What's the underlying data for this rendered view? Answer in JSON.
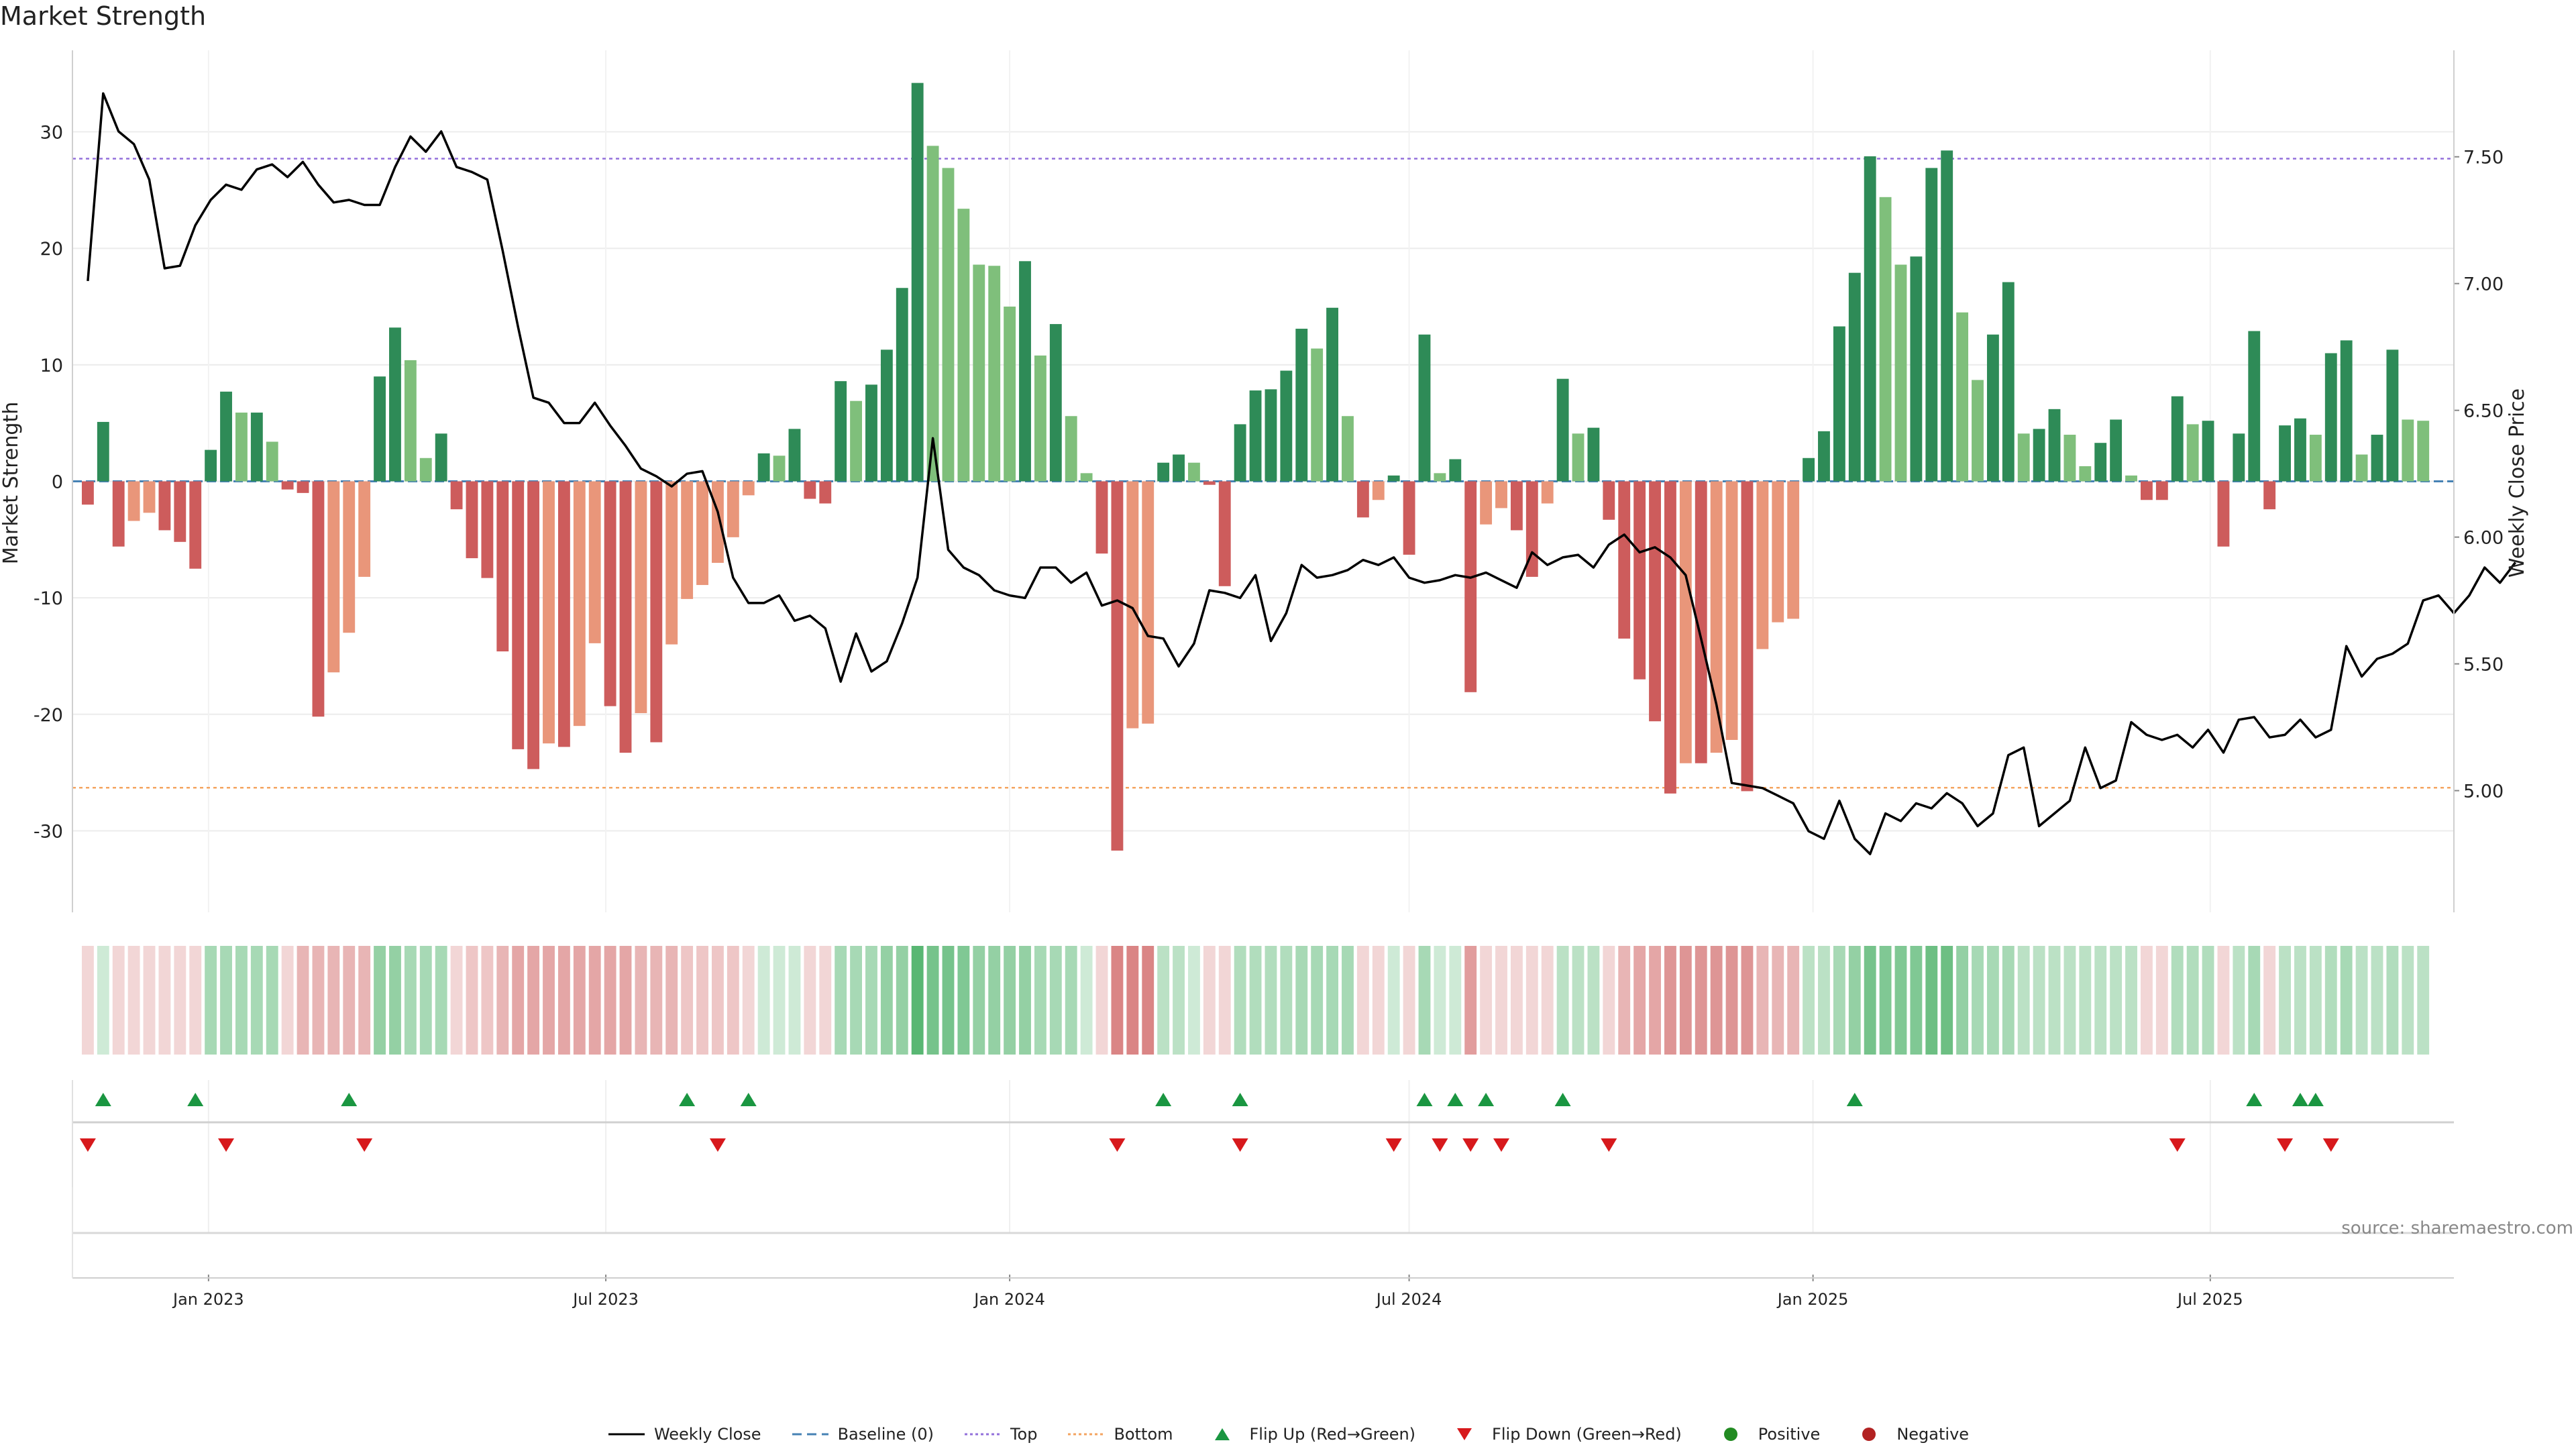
{
  "colors": {
    "pos_strong": "#2e8b57",
    "pos_weak": "#7fbf7b",
    "neg_strong": "#cd5c5c",
    "neg_weak": "#e9967a",
    "top_line": "#9370db",
    "bottom_line": "#f4a460",
    "baseline": "#4682b4",
    "price": "#000000",
    "flip_up": "#1a9641",
    "flip_down": "#d7191c",
    "positive_dot": "#228b22",
    "negative_dot": "#b22222"
  },
  "chart_data": {
    "type": "bar",
    "title": "Market Strength",
    "ylabel": "Market Strength",
    "y2label": "Weekly Close Price",
    "ylim": [
      -37,
      37
    ],
    "y2lim": [
      4.52,
      7.92
    ],
    "yticks": [
      -30,
      -20,
      -10,
      0,
      10,
      20,
      30
    ],
    "y2ticks": [
      5.0,
      5.5,
      6.0,
      6.5,
      7.0,
      7.5
    ],
    "y2tick_labels": [
      "5.00",
      "5.50",
      "6.00",
      "6.50",
      "7.00",
      "7.50"
    ],
    "top_level": 27.7,
    "bottom_level": -26.3,
    "start_date": "2022-11-07",
    "xlim": [
      "2022-10-31",
      "2025-10-20"
    ],
    "xticks": [
      "2023-01-01",
      "2023-07-01",
      "2024-01-01",
      "2024-07-01",
      "2025-01-01",
      "2025-07-01"
    ],
    "xtick_labels": [
      "Jan 2023",
      "Jul 2023",
      "Jan 2024",
      "Jul 2024",
      "Jan 2025",
      "Jul 2025"
    ],
    "strength": [
      -2,
      5.1,
      -5.6,
      -3.4,
      -2.7,
      -4.2,
      -5.2,
      -7.5,
      2.7,
      7.7,
      5.9,
      5.9,
      3.4,
      -0.7,
      -1,
      -20.2,
      -16.4,
      -13,
      -8.2,
      9,
      13.2,
      10.4,
      2,
      4.1,
      -2.4,
      -6.6,
      -8.3,
      -14.6,
      -23,
      -24.7,
      -22.5,
      -22.8,
      -21,
      -13.9,
      -19.3,
      -23.3,
      -19.9,
      -22.4,
      -14,
      -10.1,
      -8.9,
      -7,
      -4.8,
      -1.2,
      2.4,
      2.2,
      4.5,
      -1.5,
      -1.9,
      8.6,
      6.9,
      8.3,
      11.3,
      16.6,
      34.2,
      28.8,
      26.9,
      23.4,
      18.6,
      18.5,
      15,
      18.9,
      10.8,
      13.5,
      5.6,
      0.7,
      -6.2,
      -31.7,
      -21.2,
      -20.8,
      1.6,
      2.3,
      1.6,
      -0.3,
      -9,
      4.9,
      7.8,
      7.9,
      9.5,
      13.1,
      11.4,
      14.9,
      5.6,
      -3.1,
      -1.6,
      0.5,
      -6.3,
      12.6,
      0.7,
      1.9,
      -18.1,
      -3.7,
      -2.3,
      -4.2,
      -8.2,
      -1.9,
      8.8,
      4.1,
      4.6,
      -3.3,
      -13.5,
      -17,
      -20.6,
      -26.8,
      -24.2,
      -24.2,
      -23.3,
      -22.2,
      -26.6,
      -14.4,
      -12.1,
      -11.8,
      2,
      4.3,
      13.3,
      17.9,
      27.9,
      24.4,
      18.6,
      19.3,
      26.9,
      28.4,
      14.5,
      8.7,
      12.6,
      17.1,
      4.1,
      4.5,
      6.2,
      4,
      1.3,
      3.3,
      5.3,
      0.5,
      -1.6,
      -1.6,
      7.3,
      4.9,
      5.2,
      -5.6,
      4.1,
      12.9,
      -2.4,
      4.8,
      5.4,
      4,
      11,
      12.1,
      2.3,
      4,
      11.3,
      5.3,
      5.2
    ],
    "price": [
      7.01,
      7.75,
      7.6,
      7.55,
      7.41,
      7.06,
      7.07,
      7.23,
      7.33,
      7.39,
      7.37,
      7.45,
      7.47,
      7.42,
      7.48,
      7.39,
      7.32,
      7.33,
      7.31,
      7.31,
      7.46,
      7.58,
      7.52,
      7.6,
      7.46,
      7.44,
      7.41,
      7.13,
      6.83,
      6.55,
      6.53,
      6.45,
      6.45,
      6.53,
      6.44,
      6.36,
      6.27,
      6.24,
      6.2,
      6.25,
      6.26,
      6.1,
      5.84,
      5.74,
      5.74,
      5.77,
      5.67,
      5.69,
      5.64,
      5.43,
      5.62,
      5.47,
      5.51,
      5.66,
      5.84,
      6.39,
      5.95,
      5.88,
      5.85,
      5.79,
      5.77,
      5.76,
      5.88,
      5.88,
      5.82,
      5.86,
      5.73,
      5.75,
      5.72,
      5.61,
      5.6,
      5.49,
      5.58,
      5.79,
      5.78,
      5.76,
      5.85,
      5.59,
      5.7,
      5.89,
      5.84,
      5.85,
      5.87,
      5.91,
      5.89,
      5.92,
      5.84,
      5.82,
      5.83,
      5.85,
      5.84,
      5.86,
      5.83,
      5.8,
      5.94,
      5.89,
      5.92,
      5.93,
      5.88,
      5.97,
      6.01,
      5.94,
      5.96,
      5.92,
      5.85,
      5.6,
      5.34,
      5.03,
      5.02,
      5.01,
      4.98,
      4.95,
      4.84,
      4.81,
      4.96,
      4.81,
      4.75,
      4.91,
      4.88,
      4.95,
      4.93,
      4.99,
      4.95,
      4.86,
      4.91,
      5.14,
      5.17,
      4.86,
      4.91,
      4.96,
      5.17,
      5.01,
      5.04,
      5.27,
      5.22,
      5.2,
      5.22,
      5.17,
      5.24,
      5.15,
      5.28,
      5.29,
      5.21,
      5.22,
      5.28,
      5.21,
      5.24,
      5.57,
      5.45,
      5.52,
      5.54,
      5.58,
      5.75,
      5.77,
      5.7,
      5.77,
      5.88,
      5.82,
      5.9
    ]
  },
  "flip_up": [
    "2022-11-14",
    "2022-12-26",
    "2023-03-06",
    "2023-08-07",
    "2023-09-04",
    "2024-03-11",
    "2024-04-15",
    "2024-07-08",
    "2024-07-22",
    "2024-08-05",
    "2024-09-09",
    "2025-01-20",
    "2025-07-21",
    "2025-08-11",
    "2025-08-18"
  ],
  "flip_down": [
    "2022-11-07",
    "2023-01-09",
    "2023-03-13",
    "2023-08-21",
    "2024-02-19",
    "2024-04-15",
    "2024-06-24",
    "2024-07-15",
    "2024-07-29",
    "2024-08-12",
    "2024-09-30",
    "2025-06-16",
    "2025-08-04",
    "2025-08-25"
  ],
  "heat": [
    0.25,
    0.25,
    0.25,
    0.25,
    0.25,
    0.25,
    0.25,
    0.25,
    0.45,
    0.45,
    0.45,
    0.45,
    0.45,
    0.25,
    0.45,
    0.45,
    0.45,
    0.45,
    0.45,
    0.55,
    0.55,
    0.45,
    0.45,
    0.45,
    0.25,
    0.35,
    0.35,
    0.45,
    0.55,
    0.55,
    0.55,
    0.55,
    0.55,
    0.55,
    0.55,
    0.55,
    0.45,
    0.45,
    0.45,
    0.35,
    0.35,
    0.35,
    0.35,
    0.25,
    0.25,
    0.25,
    0.25,
    0.25,
    0.25,
    0.45,
    0.45,
    0.45,
    0.55,
    0.55,
    0.85,
    0.7,
    0.7,
    0.65,
    0.55,
    0.55,
    0.55,
    0.55,
    0.45,
    0.45,
    0.45,
    0.25,
    0.25,
    0.75,
    0.75,
    0.75,
    0.35,
    0.35,
    0.25,
    0.25,
    0.25,
    0.4,
    0.4,
    0.4,
    0.4,
    0.45,
    0.45,
    0.45,
    0.45,
    0.25,
    0.25,
    0.25,
    0.25,
    0.45,
    0.25,
    0.25,
    0.6,
    0.25,
    0.25,
    0.25,
    0.25,
    0.25,
    0.35,
    0.35,
    0.35,
    0.25,
    0.45,
    0.55,
    0.55,
    0.65,
    0.65,
    0.65,
    0.65,
    0.65,
    0.65,
    0.45,
    0.45,
    0.45,
    0.35,
    0.35,
    0.45,
    0.55,
    0.7,
    0.65,
    0.65,
    0.65,
    0.75,
    0.75,
    0.55,
    0.45,
    0.45,
    0.45,
    0.35,
    0.35,
    0.35,
    0.35,
    0.35,
    0.35,
    0.35,
    0.35,
    0.25,
    0.25,
    0.4,
    0.4,
    0.4,
    0.25,
    0.35,
    0.45,
    0.25,
    0.35,
    0.35,
    0.35,
    0.4,
    0.45,
    0.35,
    0.35,
    0.4,
    0.35,
    0.35
  ],
  "source": "source: sharemaestro.com",
  "legend": [
    {
      "key": "close",
      "label": "Weekly Close"
    },
    {
      "key": "baseline",
      "label": "Baseline (0)"
    },
    {
      "key": "top",
      "label": "Top"
    },
    {
      "key": "bottom",
      "label": "Bottom"
    },
    {
      "key": "flip_up",
      "label": "Flip Up (Red→Green)"
    },
    {
      "key": "flip_down",
      "label": "Flip Down (Green→Red)"
    },
    {
      "key": "positive",
      "label": "Positive"
    },
    {
      "key": "negative",
      "label": "Negative"
    }
  ]
}
